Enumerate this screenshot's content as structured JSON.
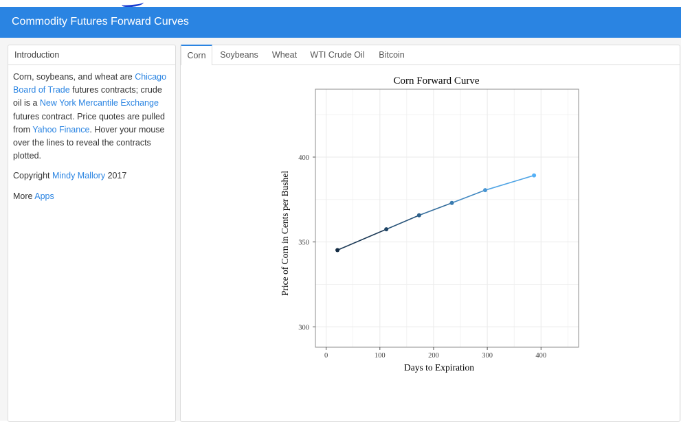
{
  "navbar": {
    "title": "Commodity Futures Forward Curves"
  },
  "sidebar": {
    "heading": "Introduction",
    "p1": {
      "t1": "Corn, soybeans, and wheat are ",
      "link1": "Chicago Board of Trade",
      "t2": " futures contracts; crude oil is a ",
      "link2": "New York Mercantile Exchange",
      "t3": " futures contract. Price quotes are pulled from ",
      "link3": "Yahoo Finance",
      "t4": ". Hover your mouse over the lines to reveal the contracts plotted."
    },
    "p2": {
      "t1": "Copyright ",
      "link": "Mindy Mallory",
      "t2": " 2017"
    },
    "p3": {
      "t1": "More ",
      "link": "Apps"
    }
  },
  "tabs": [
    {
      "label": "Corn",
      "active": true
    },
    {
      "label": "Soybeans",
      "active": false
    },
    {
      "label": "Wheat",
      "active": false
    },
    {
      "label": "WTI Crude Oil",
      "active": false
    },
    {
      "label": "Bitcoin",
      "active": false
    }
  ],
  "chart_data": {
    "type": "line",
    "title": "Corn Forward Curve",
    "xlabel": "Days to Expiration",
    "ylabel": "Price of Corn in Cents per Bushel",
    "x": [
      21,
      112,
      173,
      234,
      296,
      387
    ],
    "y": [
      345.2,
      357.5,
      365.7,
      373.0,
      380.5,
      389.2
    ],
    "xlim": [
      -20,
      470
    ],
    "ylim": [
      288,
      440
    ],
    "xticks": [
      0,
      100,
      200,
      300,
      400
    ],
    "yticks": [
      300,
      350,
      400
    ],
    "grid": true,
    "colors": {
      "line_start": "#132b43",
      "line_end": "#56b1f7",
      "grid": "#ebebeb",
      "frame": "#8c8c8c"
    }
  }
}
